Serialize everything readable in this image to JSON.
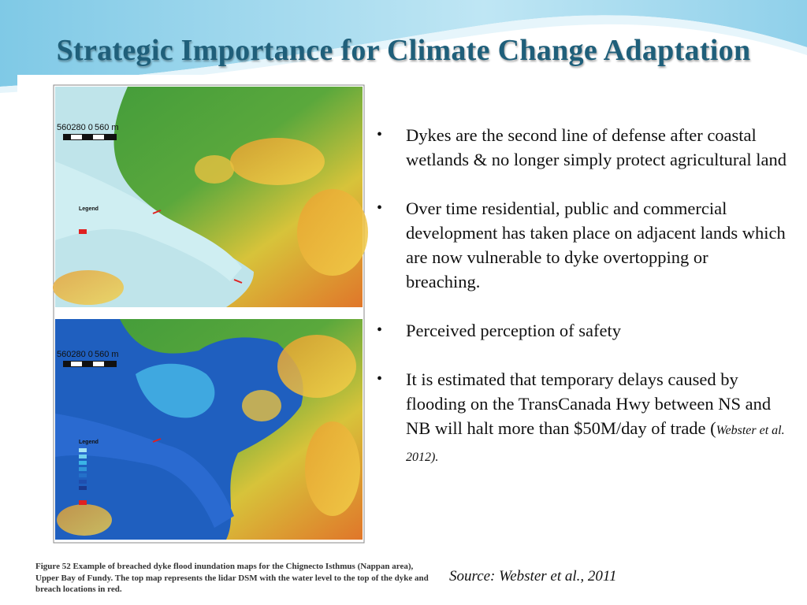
{
  "title": "Strategic Importance for Climate Change Adaptation",
  "bullets": [
    {
      "text": "Dykes are the second line of defense after coastal wetlands & no longer  simply protect agricultural land"
    },
    {
      "text": "Over time residential, public and commercial development has taken place on adjacent lands which are now vulnerable to dyke overtopping or breaching."
    },
    {
      "text": "Perceived perception of safety"
    },
    {
      "text": "It is estimated that temporary delays caused by flooding on the TransCanada Hwy between NS and NB will halt more than $50M/day of trade (",
      "citation": "Webster et al. 2012)."
    }
  ],
  "maps": [
    {
      "scale_start": "560280 0",
      "scale_end": "560 m",
      "legend": "Legend"
    },
    {
      "scale_start": "560280 0",
      "scale_end": "560 m",
      "legend": "Legend"
    }
  ],
  "figure_caption": "Figure 52 Example of breached dyke flood inundation maps for the Chignecto Isthmus (Nappan area), Upper Bay of Fundy. The top map represents the lidar DSM with the water level to the top of the dyke and breach locations in red.",
  "source": "Source: Webster et al., 2011"
}
